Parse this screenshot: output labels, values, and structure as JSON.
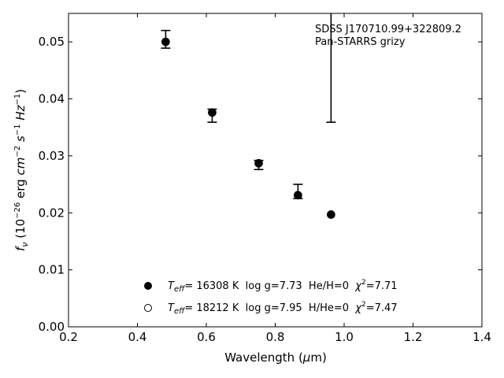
{
  "chart_data": {
    "type": "scatter",
    "title": "",
    "xlabel": "Wavelength (μm)",
    "ylabel": "f_ν (10^-26 erg cm^-2 s^-1 Hz^-1)",
    "xlim": [
      0.2,
      1.4
    ],
    "ylim": [
      0.0,
      0.055
    ],
    "xticks": [
      0.2,
      0.4,
      0.6,
      0.8,
      1.0,
      1.2,
      1.4
    ],
    "xtick_labels": [
      "0.2",
      "0.4",
      "0.6",
      "0.8",
      "1.0",
      "1.2",
      "1.4"
    ],
    "yticks": [
      0.0,
      0.01,
      0.02,
      0.03,
      0.04,
      0.05
    ],
    "ytick_labels": [
      "0.00",
      "0.01",
      "0.02",
      "0.03",
      "0.04",
      "0.05"
    ],
    "grid": false,
    "annotations": [
      "SDSS J170710.99+322809.2",
      "Pan-STARRS grizy"
    ],
    "observed": [
      {
        "x": 0.482,
        "y": 0.0503,
        "err_low": 0.0489,
        "err_high": 0.052
      },
      {
        "x": 0.617,
        "y": 0.0373,
        "err_low": 0.0359,
        "err_high": 0.0382
      },
      {
        "x": 0.752,
        "y": 0.0285,
        "err_low": 0.0276,
        "err_high": 0.0292
      },
      {
        "x": 0.866,
        "y": 0.0232,
        "err_low": 0.0225,
        "err_high": 0.025
      },
      {
        "x": 0.962,
        "y": 0.0197,
        "err_low": 0.0359,
        "err_high": 0.055
      }
    ],
    "series": [
      {
        "name": "Teff= 16308 K  log g=7.73  He/H=0  χ²=7.71",
        "marker": "filled-circle",
        "x": [
          0.482,
          0.617,
          0.752,
          0.866,
          0.962
        ],
        "values": [
          0.05,
          0.0376,
          0.0287,
          0.0231,
          0.0197
        ]
      },
      {
        "name": "Teff= 18212 K  log g=7.95  H/He=0  χ²=7.47",
        "marker": "open-circle",
        "x": [
          0.482,
          0.617,
          0.752,
          0.866,
          0.962
        ],
        "values": [
          0.05,
          0.0376,
          0.0287,
          0.0231,
          0.0197
        ]
      }
    ],
    "legend_position": "bottom-center",
    "legend": [
      {
        "teff_label": "T",
        "teff_sub": "eff",
        "text": "= 16308 K  log g=7.73  He/H=0  ",
        "chi_label": "χ",
        "chi_sup": "2",
        "chi_value": "=7.71"
      },
      {
        "teff_label": "T",
        "teff_sub": "eff",
        "text": "= 18212 K  log g=7.95  H/He=0  ",
        "chi_label": "χ",
        "chi_sup": "2",
        "chi_value": "=7.47"
      }
    ],
    "colors": {
      "marker": "#000000",
      "axis": "#000000",
      "background": "#ffffff"
    }
  }
}
